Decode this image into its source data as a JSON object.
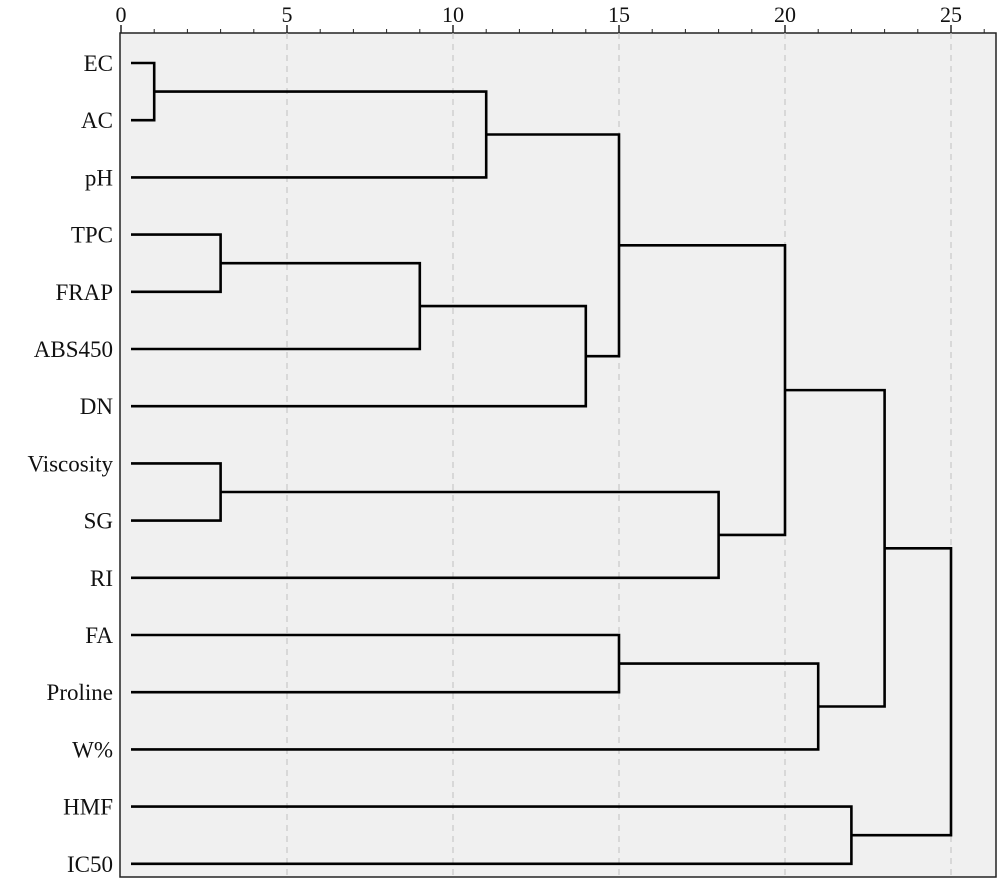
{
  "chart_data": {
    "type": "dendrogram",
    "orientation": "horizontal",
    "xlim": [
      0,
      26
    ],
    "x_ticks": [
      0,
      5,
      10,
      15,
      20,
      25
    ],
    "x_tick_labels": [
      "0",
      "5",
      "10",
      "15",
      "20",
      "25"
    ],
    "x_axis_position": "top",
    "grid": "vertical dashed at ticks",
    "leaves": [
      "EC",
      "AC",
      "pH",
      "TPC",
      "FRAP",
      "ABS450",
      "DN",
      "Viscosity",
      "SG",
      "RI",
      "FA",
      "Proline",
      "W%",
      "HMF",
      "IC50"
    ],
    "merges": [
      {
        "left": "EC",
        "right": "AC",
        "height": 1
      },
      {
        "left": "EC+AC",
        "right": "pH",
        "height": 11
      },
      {
        "left": "TPC",
        "right": "FRAP",
        "height": 3
      },
      {
        "left": "TPC+FRAP",
        "right": "ABS450",
        "height": 9
      },
      {
        "left": "TPC+FRAP+ABS450",
        "right": "DN",
        "height": 14
      },
      {
        "left": "EC+AC+pH",
        "right": "TPC+FRAP+ABS450+DN",
        "height": 15
      },
      {
        "left": "Viscosity",
        "right": "SG",
        "height": 3
      },
      {
        "left": "Viscosity+SG",
        "right": "RI",
        "height": 18
      },
      {
        "left": "EC..DN",
        "right": "Viscosity+SG+RI",
        "height": 20
      },
      {
        "left": "FA",
        "right": "Proline",
        "height": 15
      },
      {
        "left": "FA+Proline",
        "right": "W%",
        "height": 21
      },
      {
        "left": "EC..RI",
        "right": "FA+Proline+W%",
        "height": 23
      },
      {
        "left": "HMF",
        "right": "IC50",
        "height": 22
      },
      {
        "left": "EC..W%",
        "right": "HMF+IC50",
        "height": 25
      }
    ],
    "colors": {
      "panel": "#f0f0f0",
      "line": "#000000",
      "grid": "#c8c8c8"
    }
  }
}
